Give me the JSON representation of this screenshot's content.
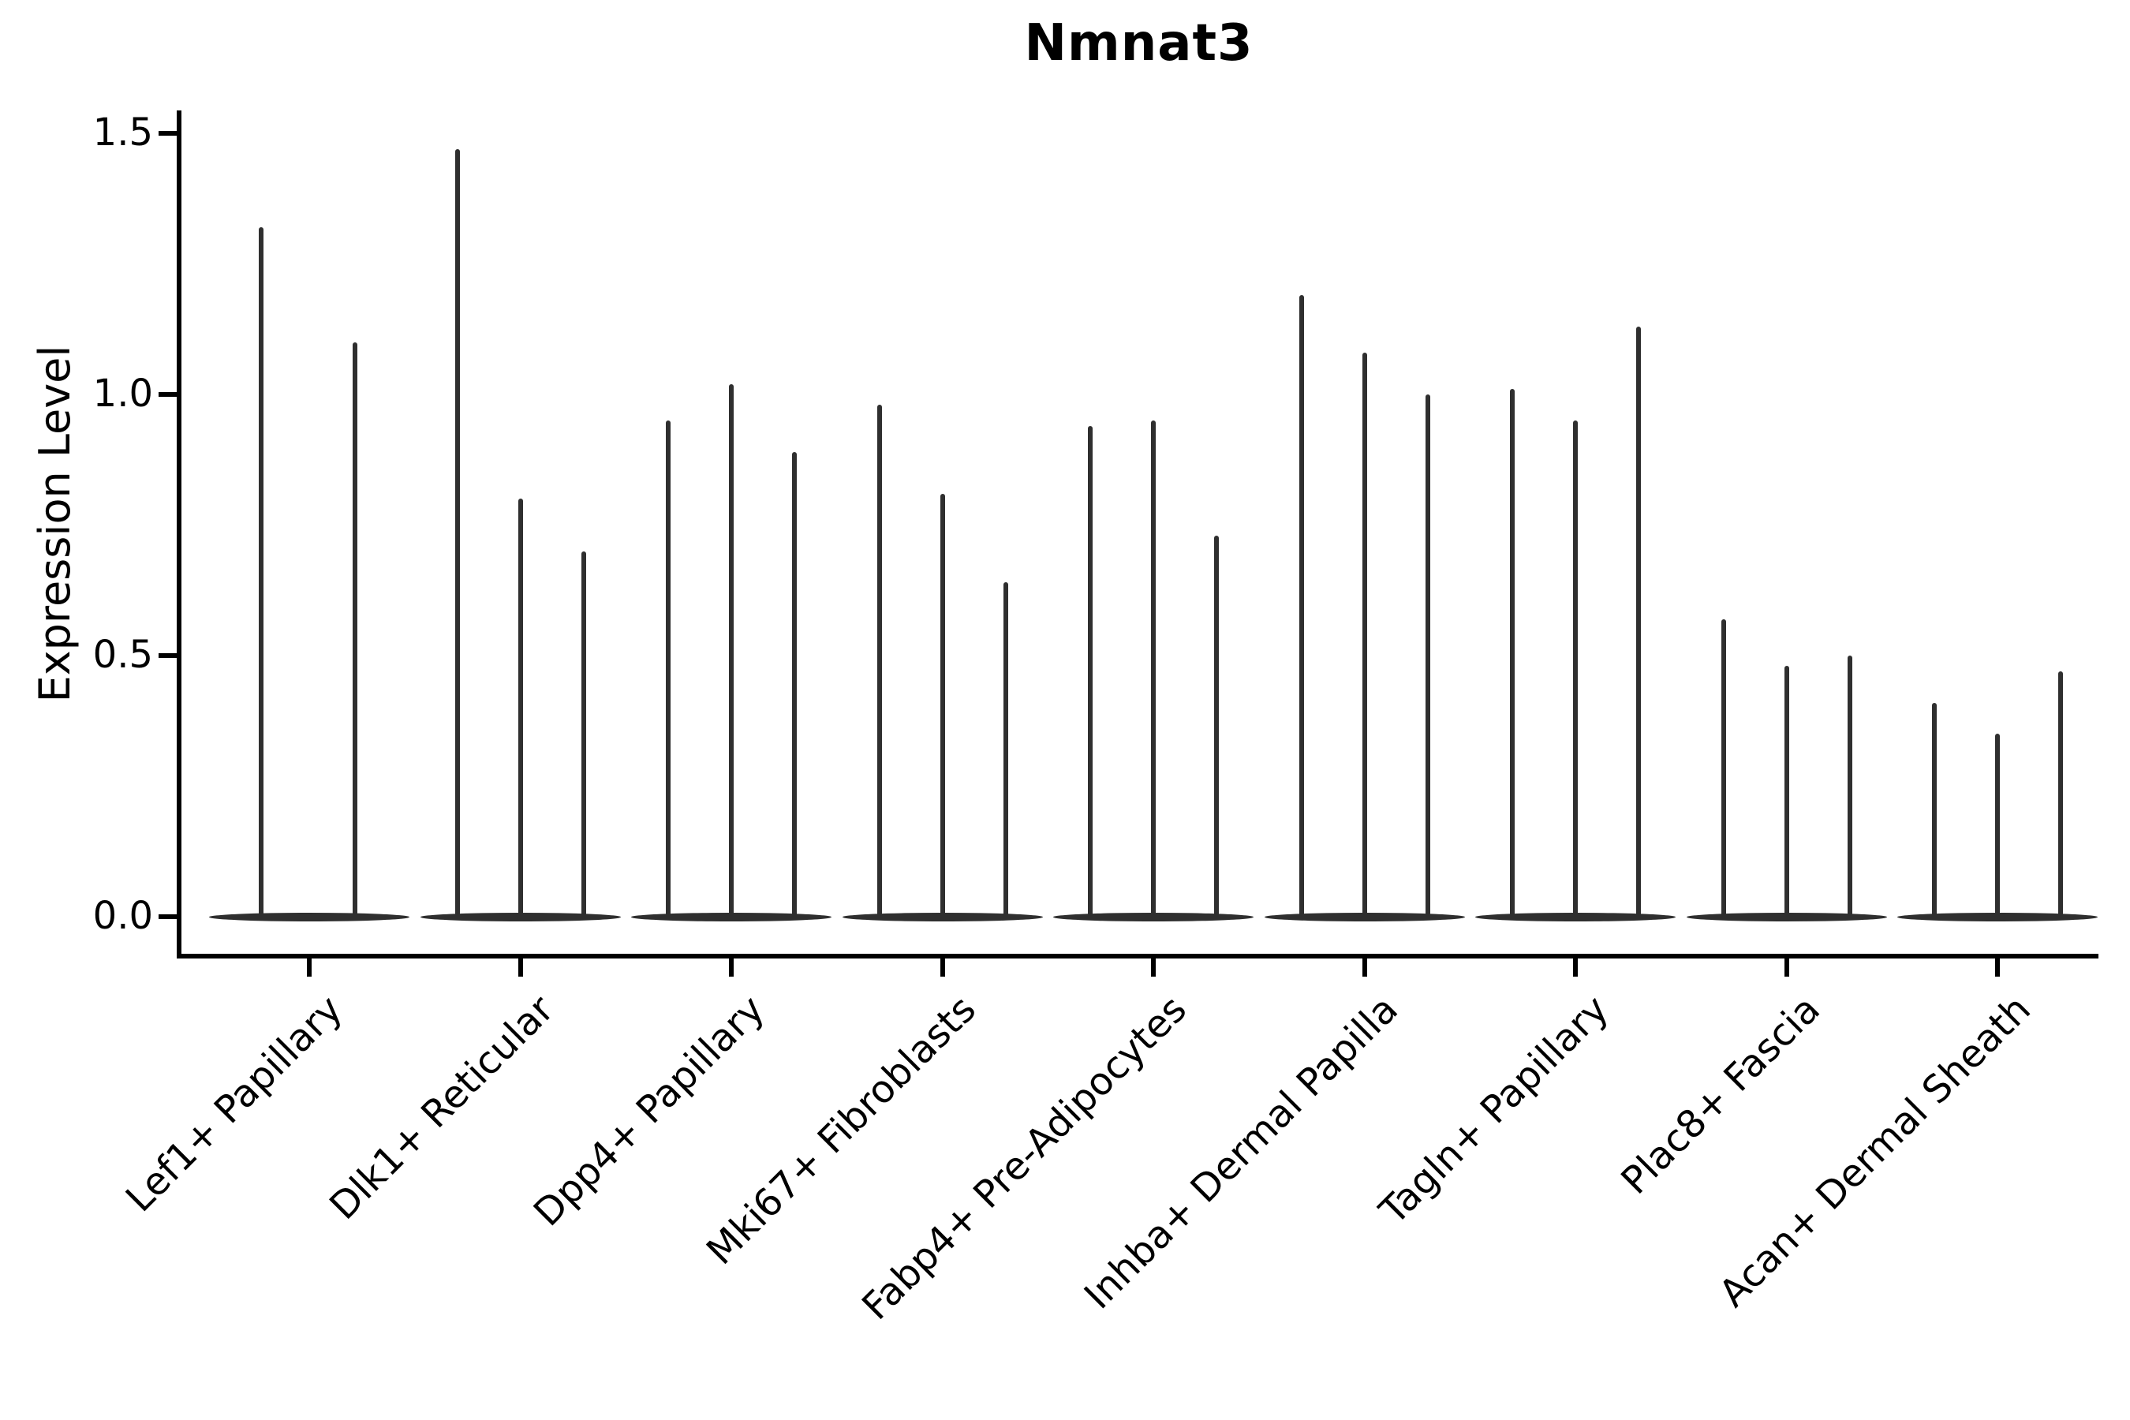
{
  "chart_data": {
    "type": "violin",
    "title": "Nmnat3",
    "xlabel": "",
    "ylabel": "Expression Level",
    "ylim": [
      -0.07,
      1.55
    ],
    "grid": false,
    "legend": null,
    "y_ticks": [
      {
        "value": 0.0,
        "label": "0.0"
      },
      {
        "value": 0.5,
        "label": "0.5"
      },
      {
        "value": 1.0,
        "label": "1.0"
      },
      {
        "value": 1.5,
        "label": "1.5"
      }
    ],
    "categories": [
      "Lef1+ Papillary",
      "Dlk1+ Reticular",
      "Dpp4+ Papillary",
      "Mki67+ Fibroblasts",
      "Fabp4+ Pre-Adipocytes",
      "Inhba+ Dermal Papilla",
      "Tagln+ Papillary",
      "Plac8+ Fascia",
      "Acan+ Dermal Sheath"
    ],
    "series": [
      {
        "category": "Lef1+ Papillary",
        "violin_max_values": [
          1.32,
          1.1
        ]
      },
      {
        "category": "Dlk1+ Reticular",
        "violin_max_values": [
          1.47,
          0.8,
          0.7
        ]
      },
      {
        "category": "Dpp4+ Papillary",
        "violin_max_values": [
          0.95,
          1.02,
          0.89
        ]
      },
      {
        "category": "Mki67+ Fibroblasts",
        "violin_max_values": [
          0.98,
          0.81,
          0.64
        ]
      },
      {
        "category": "Fabp4+ Pre-Adipocytes",
        "violin_max_values": [
          0.94,
          0.95,
          0.73
        ]
      },
      {
        "category": "Inhba+ Dermal Papilla",
        "violin_max_values": [
          1.19,
          1.08,
          1.0
        ]
      },
      {
        "category": "Tagln+ Papillary",
        "violin_max_values": [
          1.01,
          0.95,
          1.13
        ]
      },
      {
        "category": "Plac8+ Fascia",
        "violin_max_values": [
          0.57,
          0.48,
          0.5
        ]
      },
      {
        "category": "Acan+ Dermal Sheath",
        "violin_max_values": [
          0.41,
          0.35,
          0.47
        ]
      }
    ],
    "shape_note": "Each violin is collapsed at expression 0 into a flat horizontal base with a single thin vertical spike rising to its maximum value",
    "colors": {
      "violin": "#2f2f2f",
      "axis": "#000000",
      "text": "#000000",
      "background": "#ffffff"
    }
  }
}
